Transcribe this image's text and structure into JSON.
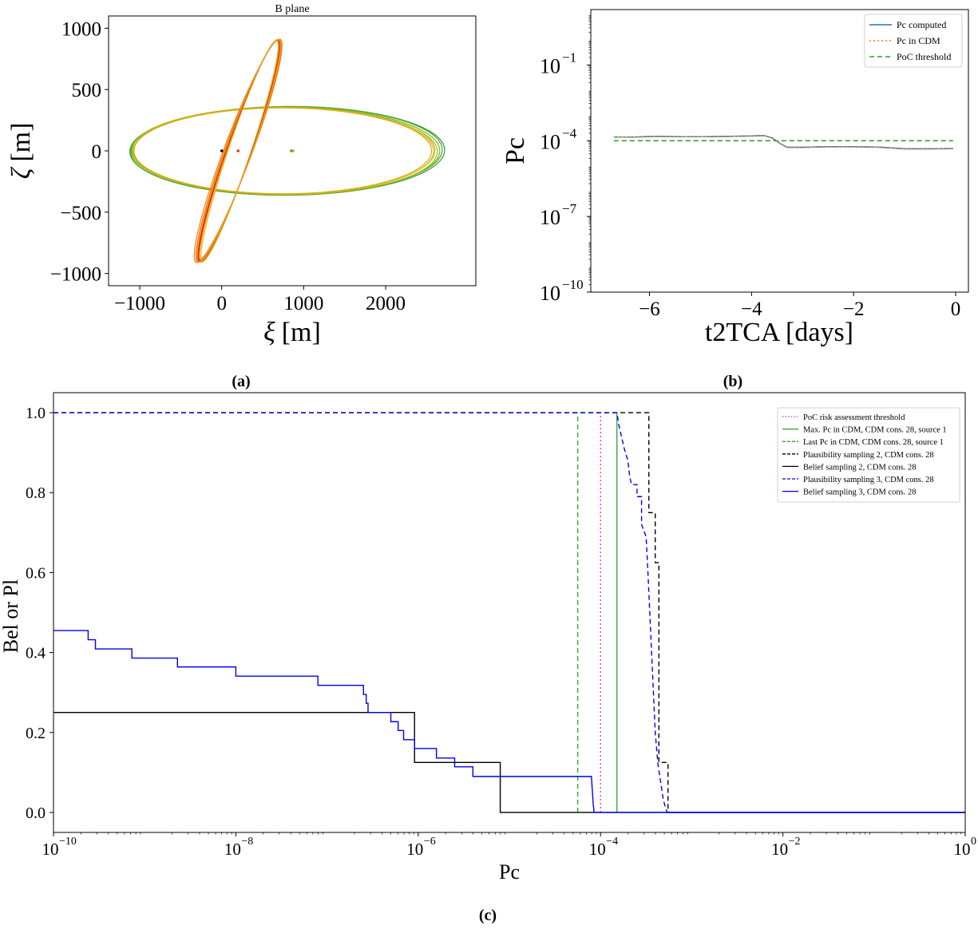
{
  "chart_data": [
    {
      "type": "line",
      "panel": "a",
      "caption": "(a)",
      "title": "B plane",
      "xlabel_sym": "ξ",
      "xlabel_unit": "[m]",
      "ylabel_sym": "ζ",
      "ylabel_unit": "[m]",
      "xlim": [
        -1380,
        3100
      ],
      "ylim": [
        -1100,
        1100
      ],
      "xticks": [
        -1000,
        0,
        1000,
        2000
      ],
      "xtick_labels": [
        "−1000",
        "0",
        "1000",
        "2000"
      ],
      "yticks": [
        -1000,
        -500,
        0,
        500,
        1000
      ],
      "ytick_labels": [
        "−1000",
        "−500",
        "0",
        "500",
        "1000"
      ],
      "grid": false,
      "wide_ellipses": [
        {
          "cx": 800,
          "cy": 0,
          "rx": 1920,
          "ry": 362,
          "rot": 0.2,
          "color": "#2e9a2e"
        },
        {
          "cx": 790,
          "cy": 0,
          "rx": 1900,
          "ry": 360,
          "rot": 0.3,
          "color": "#4aa52a"
        },
        {
          "cx": 780,
          "cy": 0,
          "rx": 1880,
          "ry": 358,
          "rot": 0.0,
          "color": "#7cb51e"
        },
        {
          "cx": 770,
          "cy": 0,
          "rx": 1860,
          "ry": 356,
          "rot": -0.2,
          "color": "#9ab81c"
        },
        {
          "cx": 760,
          "cy": 0,
          "rx": 1840,
          "ry": 354,
          "rot": 0.1,
          "color": "#b8bc1a"
        },
        {
          "cx": 755,
          "cy": 0,
          "rx": 1830,
          "ry": 352,
          "rot": -0.1,
          "color": "#d4b818"
        },
        {
          "cx": 745,
          "cy": 0,
          "rx": 1815,
          "ry": 350,
          "rot": 0.0,
          "color": "#e8a814"
        }
      ],
      "tall_ellipses": [
        {
          "cx": 205,
          "cy": 0,
          "rx": 1035,
          "ry": 150,
          "rot": 61.0,
          "color": "#f06010"
        },
        {
          "cx": 215,
          "cy": 0,
          "rx": 1020,
          "ry": 135,
          "rot": 62.5,
          "color": "#e8a814"
        },
        {
          "cx": 210,
          "cy": 0,
          "rx": 1025,
          "ry": 142,
          "rot": 61.8,
          "color": "#ff2a00"
        },
        {
          "cx": 218,
          "cy": 0,
          "rx": 1010,
          "ry": 128,
          "rot": 63.0,
          "color": "#d4b818"
        },
        {
          "cx": 200,
          "cy": 0,
          "rx": 1045,
          "ry": 158,
          "rot": 60.3,
          "color": "#f08010"
        },
        {
          "cx": 212,
          "cy": 0,
          "rx": 1018,
          "ry": 138,
          "rot": 62.0,
          "color": "#ff1500"
        },
        {
          "cx": 208,
          "cy": 0,
          "rx": 1030,
          "ry": 146,
          "rot": 61.4,
          "color": "#e0b020"
        }
      ],
      "markers": [
        {
          "x": 0,
          "y": 0,
          "color": "#000000"
        },
        {
          "x": 200,
          "y": 0,
          "color": "#ff3300"
        },
        {
          "x": 850,
          "y": 0,
          "color": "#2e9a2e"
        },
        {
          "x": 870,
          "y": 0,
          "color": "#9ab81c"
        }
      ]
    },
    {
      "type": "line",
      "panel": "b",
      "caption": "(b)",
      "xlabel": "t2TCA [days]",
      "ylabel": "Pc",
      "yscale": "log",
      "xlim": [
        -7.15,
        0.25
      ],
      "ylim_exp": [
        -10,
        1.2
      ],
      "xticks": [
        -6,
        -4,
        -2,
        0
      ],
      "xtick_labels": [
        "−6",
        "−4",
        "−2",
        "0"
      ],
      "yticks_exp": [
        -10,
        -7,
        -4,
        -1
      ],
      "ytick_bases": [
        "10",
        "10",
        "10",
        "10"
      ],
      "ytick_exps": [
        "−10",
        "−7",
        "−4",
        "−1"
      ],
      "legend_position": "top-right",
      "series": [
        {
          "name": "Pc computed",
          "style": "solid",
          "color": "#1f77b4",
          "x": [
            -6.7,
            -6.3,
            -5.9,
            -5.4,
            -4.9,
            -4.4,
            -4.0,
            -3.75,
            -3.6,
            -3.45,
            -3.3,
            -3.0,
            -2.5,
            -2.0,
            -1.5,
            -1.0,
            -0.5,
            -0.05
          ],
          "y": [
            0.00014,
            0.00014,
            0.00015,
            0.000145,
            0.000145,
            0.00015,
            0.000155,
            0.00016,
            0.00013,
            8e-05,
            5.5e-05,
            5.5e-05,
            5.8e-05,
            5.8e-05,
            5.6e-05,
            4.8e-05,
            4.8e-05,
            4.9e-05
          ]
        },
        {
          "name": "Pc in CDM",
          "style": "dotted",
          "color": "#ff7f0e",
          "x": [
            -6.7,
            -6.3,
            -5.9,
            -5.4,
            -4.9,
            -4.4,
            -4.0,
            -3.75,
            -3.6,
            -3.45,
            -3.3,
            -3.0,
            -2.5,
            -2.0,
            -1.5,
            -1.0,
            -0.5,
            -0.05
          ],
          "y": [
            0.00014,
            0.00014,
            0.00015,
            0.000145,
            0.000145,
            0.00015,
            0.000155,
            0.00016,
            0.00013,
            8e-05,
            5.5e-05,
            5.5e-05,
            5.8e-05,
            5.8e-05,
            5.6e-05,
            4.8e-05,
            4.8e-05,
            4.9e-05
          ]
        },
        {
          "name": "PoC threshold",
          "style": "dashed",
          "color": "#2ca02c",
          "x": [
            -6.7,
            -0.05
          ],
          "y": [
            0.0001,
            0.0001
          ]
        }
      ]
    },
    {
      "type": "line",
      "panel": "c",
      "caption": "(c)",
      "xlabel": "Pc",
      "ylabel": "Bel or Pl",
      "xscale": "log",
      "xlim_exp": [
        -10,
        0
      ],
      "ylim": [
        -0.05,
        1.05
      ],
      "xticks_exp": [
        -10,
        -8,
        -6,
        -4,
        -2,
        0
      ],
      "xtick_bases": [
        "10",
        "10",
        "10",
        "10",
        "10",
        "10"
      ],
      "xtick_exps": [
        "−10",
        "−8",
        "−6",
        "−4",
        "−2",
        "0"
      ],
      "yticks": [
        0.0,
        0.2,
        0.4,
        0.6,
        0.8,
        1.0
      ],
      "ytick_labels": [
        "0.0",
        "0.2",
        "0.4",
        "0.6",
        "0.8",
        "1.0"
      ],
      "legend_position": "top-right",
      "vlines": [
        {
          "name": "PoC risk assessment threshold",
          "style": "dotted",
          "color": "#cc33cc",
          "x_exp": -4.0,
          "y": [
            0,
            1
          ]
        },
        {
          "name": "Max. Pc in CDM, CDM cons. 28, source 1",
          "style": "solid",
          "color": "#2ca02c",
          "x_exp": -3.82,
          "y": [
            0,
            1
          ]
        },
        {
          "name": "Last Pc in CDM, CDM cons. 28, source 1",
          "style": "dashed",
          "color": "#2ca02c",
          "x_exp": -4.25,
          "y": [
            0,
            1
          ]
        }
      ],
      "series": [
        {
          "name": "Plausibility sampling 2, CDM cons. 28",
          "style": "dashed",
          "color": "#000000",
          "points": [
            [
              -10,
              1.0
            ],
            [
              -3.47,
              1.0
            ],
            [
              -3.47,
              0.75
            ],
            [
              -3.4,
              0.75
            ],
            [
              -3.4,
              0.625
            ],
            [
              -3.36,
              0.625
            ],
            [
              -3.36,
              0.125
            ],
            [
              -3.26,
              0.125
            ],
            [
              -3.26,
              0.0
            ],
            [
              0,
              0.0
            ]
          ]
        },
        {
          "name": "Belief sampling 2, CDM cons. 28",
          "style": "solid",
          "color": "#000000",
          "points": [
            [
              -10,
              0.25
            ],
            [
              -6.04,
              0.25
            ],
            [
              -6.04,
              0.125
            ],
            [
              -5.1,
              0.125
            ],
            [
              -5.1,
              0.0
            ],
            [
              0,
              0.0
            ]
          ]
        },
        {
          "name": "Plausibility sampling 3, CDM cons. 28",
          "style": "dashed",
          "color": "#0000ee",
          "points": [
            [
              -10,
              1.0
            ],
            [
              -3.82,
              1.0
            ],
            [
              -3.8,
              0.97
            ],
            [
              -3.77,
              0.94
            ],
            [
              -3.74,
              0.91
            ],
            [
              -3.7,
              0.88
            ],
            [
              -3.68,
              0.84
            ],
            [
              -3.66,
              0.82
            ],
            [
              -3.6,
              0.82
            ],
            [
              -3.6,
              0.79
            ],
            [
              -3.55,
              0.79
            ],
            [
              -3.55,
              0.72
            ],
            [
              -3.5,
              0.69
            ],
            [
              -3.48,
              0.6
            ],
            [
              -3.46,
              0.5
            ],
            [
              -3.44,
              0.4
            ],
            [
              -3.42,
              0.3
            ],
            [
              -3.4,
              0.2
            ],
            [
              -3.37,
              0.12
            ],
            [
              -3.31,
              0.03
            ],
            [
              -3.27,
              0.0
            ],
            [
              0,
              0.0
            ]
          ]
        },
        {
          "name": "Belief sampling 3, CDM cons. 28",
          "style": "solid",
          "color": "#0000ee",
          "points": [
            [
              -10,
              0.455
            ],
            [
              -9.62,
              0.455
            ],
            [
              -9.62,
              0.432
            ],
            [
              -9.54,
              0.432
            ],
            [
              -9.54,
              0.409
            ],
            [
              -9.14,
              0.409
            ],
            [
              -9.14,
              0.386
            ],
            [
              -8.64,
              0.386
            ],
            [
              -8.64,
              0.364
            ],
            [
              -8.0,
              0.364
            ],
            [
              -8.0,
              0.341
            ],
            [
              -7.1,
              0.341
            ],
            [
              -7.1,
              0.318
            ],
            [
              -6.6,
              0.318
            ],
            [
              -6.6,
              0.295
            ],
            [
              -6.57,
              0.295
            ],
            [
              -6.57,
              0.273
            ],
            [
              -6.55,
              0.273
            ],
            [
              -6.55,
              0.25
            ],
            [
              -6.3,
              0.25
            ],
            [
              -6.3,
              0.227
            ],
            [
              -6.22,
              0.227
            ],
            [
              -6.22,
              0.205
            ],
            [
              -6.16,
              0.205
            ],
            [
              -6.16,
              0.182
            ],
            [
              -6.04,
              0.182
            ],
            [
              -6.04,
              0.16
            ],
            [
              -5.8,
              0.16
            ],
            [
              -5.8,
              0.136
            ],
            [
              -5.6,
              0.136
            ],
            [
              -5.6,
              0.114
            ],
            [
              -5.4,
              0.114
            ],
            [
              -5.4,
              0.09
            ],
            [
              -4.1,
              0.09
            ],
            [
              -4.08,
              0.02
            ],
            [
              -4.07,
              0.0
            ],
            [
              0,
              0.0
            ]
          ]
        }
      ]
    }
  ]
}
